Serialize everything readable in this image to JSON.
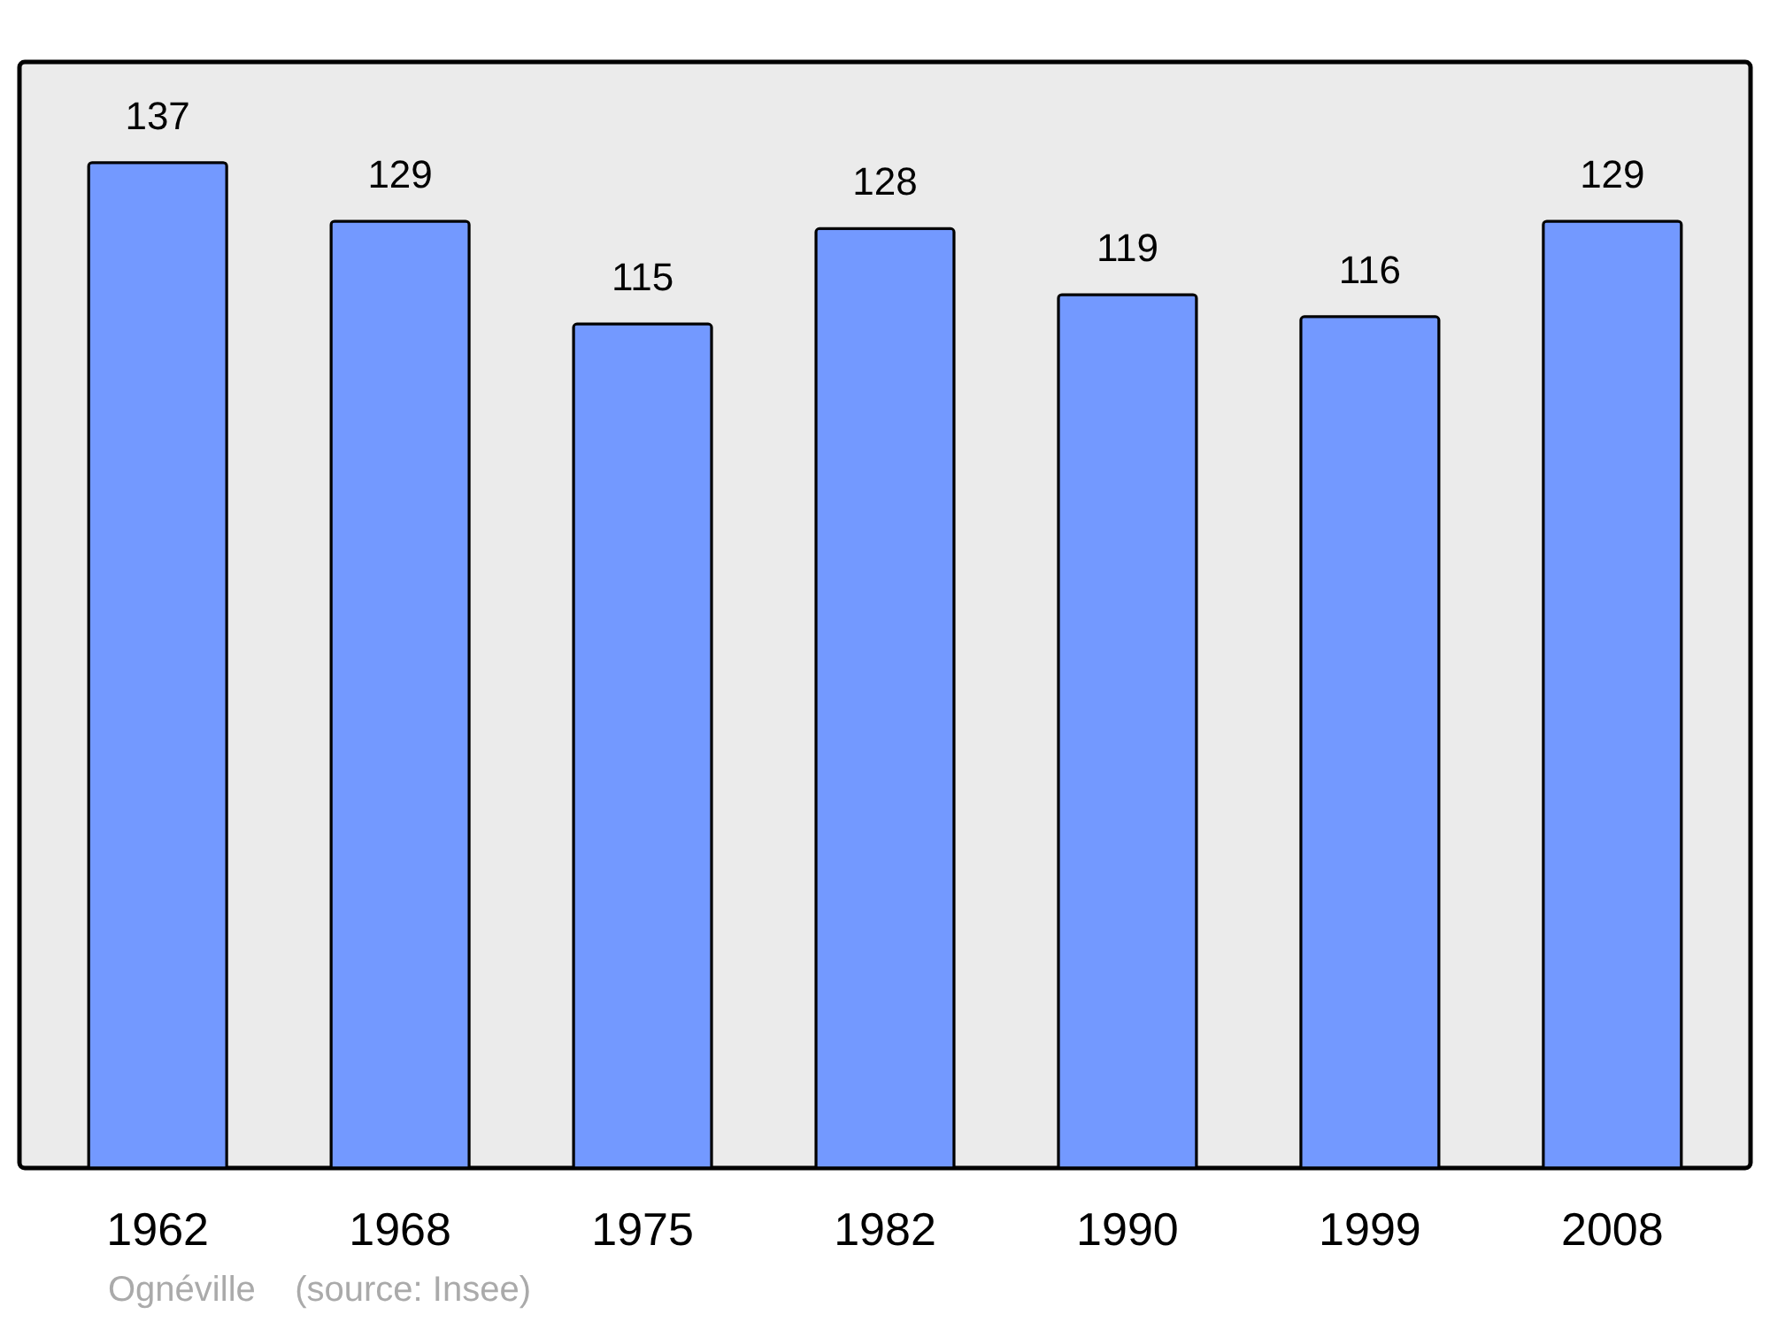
{
  "chart_data": {
    "type": "bar",
    "categories": [
      "1962",
      "1968",
      "1975",
      "1982",
      "1990",
      "1999",
      "2008"
    ],
    "values": [
      137,
      129,
      115,
      128,
      119,
      116,
      129
    ],
    "color": "#7399ff",
    "ylim": [
      0,
      150.7
    ],
    "data_labels": true,
    "annotations": [
      "Ognéville    (source: Insee)"
    ]
  }
}
